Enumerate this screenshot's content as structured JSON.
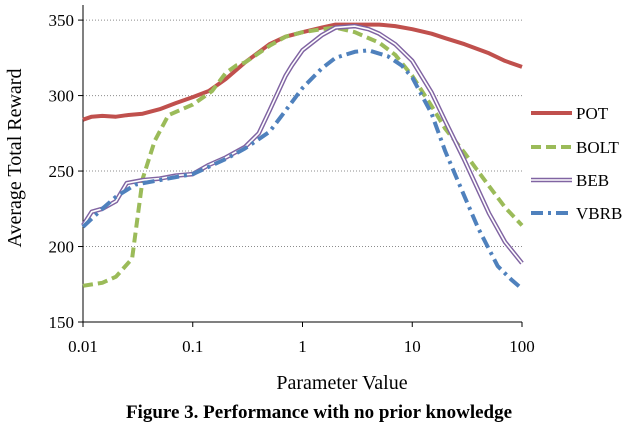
{
  "chart_data": {
    "type": "line",
    "title": "",
    "xlabel": "Parameter Value",
    "ylabel": "Average Total Reward",
    "x_scale": "log",
    "xlim": [
      0.01,
      100
    ],
    "ylim": [
      150,
      360
    ],
    "x_ticks": [
      0.01,
      0.1,
      1,
      10,
      100
    ],
    "x_tick_labels": [
      "0.01",
      "0.1",
      "1",
      "10",
      "100"
    ],
    "y_ticks": [
      150,
      200,
      250,
      300,
      350
    ],
    "y_tick_labels": [
      "150",
      "200",
      "250",
      "300",
      "350"
    ],
    "grid": "horizontal dotted",
    "legend_position": "right",
    "series": [
      {
        "name": "POT",
        "color": "#c0504d",
        "style": "solid",
        "points": [
          [
            0.01,
            284
          ],
          [
            0.012,
            286
          ],
          [
            0.015,
            286.5
          ],
          [
            0.02,
            286
          ],
          [
            0.025,
            287
          ],
          [
            0.035,
            288
          ],
          [
            0.05,
            291
          ],
          [
            0.07,
            295
          ],
          [
            0.1,
            299
          ],
          [
            0.14,
            303
          ],
          [
            0.2,
            311
          ],
          [
            0.3,
            322
          ],
          [
            0.5,
            334
          ],
          [
            0.7,
            339
          ],
          [
            1,
            342
          ],
          [
            1.5,
            345
          ],
          [
            2,
            347
          ],
          [
            3,
            347
          ],
          [
            5,
            347
          ],
          [
            7,
            346
          ],
          [
            10,
            344
          ],
          [
            15,
            341
          ],
          [
            20,
            338
          ],
          [
            30,
            334
          ],
          [
            50,
            328
          ],
          [
            70,
            323
          ],
          [
            100,
            319
          ]
        ]
      },
      {
        "name": "BOLT",
        "color": "#9bbb59",
        "style": "dashed",
        "points": [
          [
            0.01,
            174
          ],
          [
            0.015,
            176
          ],
          [
            0.02,
            180
          ],
          [
            0.028,
            192
          ],
          [
            0.035,
            245
          ],
          [
            0.045,
            270
          ],
          [
            0.06,
            287
          ],
          [
            0.08,
            291
          ],
          [
            0.1,
            294
          ],
          [
            0.15,
            303
          ],
          [
            0.2,
            315
          ],
          [
            0.25,
            320
          ],
          [
            0.3,
            322
          ],
          [
            0.5,
            333
          ],
          [
            0.7,
            339
          ],
          [
            1,
            342
          ],
          [
            1.5,
            344
          ],
          [
            2,
            345
          ],
          [
            3,
            342
          ],
          [
            5,
            335
          ],
          [
            7,
            327
          ],
          [
            10,
            313
          ],
          [
            15,
            293
          ],
          [
            20,
            278
          ],
          [
            30,
            262
          ],
          [
            50,
            240
          ],
          [
            70,
            226
          ],
          [
            100,
            214
          ]
        ]
      },
      {
        "name": "BEB",
        "color": "#8064a2",
        "style": "double",
        "points": [
          [
            0.01,
            214
          ],
          [
            0.012,
            223
          ],
          [
            0.015,
            225
          ],
          [
            0.02,
            230
          ],
          [
            0.025,
            242
          ],
          [
            0.035,
            244
          ],
          [
            0.05,
            245
          ],
          [
            0.07,
            247
          ],
          [
            0.1,
            248
          ],
          [
            0.14,
            254
          ],
          [
            0.2,
            259
          ],
          [
            0.3,
            266
          ],
          [
            0.4,
            275
          ],
          [
            0.5,
            290
          ],
          [
            0.7,
            313
          ],
          [
            0.8,
            320
          ],
          [
            1,
            330
          ],
          [
            1.5,
            340
          ],
          [
            2,
            345
          ],
          [
            3,
            346
          ],
          [
            4,
            344
          ],
          [
            5,
            341
          ],
          [
            7,
            334
          ],
          [
            10,
            323
          ],
          [
            15,
            302
          ],
          [
            20,
            283
          ],
          [
            30,
            257
          ],
          [
            50,
            222
          ],
          [
            70,
            203
          ],
          [
            100,
            189
          ]
        ]
      },
      {
        "name": "VBRB",
        "color": "#4f81bd",
        "style": "dashdot",
        "points": [
          [
            0.01,
            213
          ],
          [
            0.015,
            225
          ],
          [
            0.02,
            233
          ],
          [
            0.03,
            241
          ],
          [
            0.05,
            244
          ],
          [
            0.07,
            246
          ],
          [
            0.1,
            248
          ],
          [
            0.2,
            258
          ],
          [
            0.3,
            265
          ],
          [
            0.5,
            276
          ],
          [
            0.7,
            290
          ],
          [
            1,
            305
          ],
          [
            1.5,
            318
          ],
          [
            2,
            325
          ],
          [
            3,
            329
          ],
          [
            4,
            330
          ],
          [
            6,
            326
          ],
          [
            8,
            320
          ],
          [
            10,
            312
          ],
          [
            15,
            288
          ],
          [
            20,
            263
          ],
          [
            30,
            233
          ],
          [
            40,
            212
          ],
          [
            60,
            187
          ],
          [
            80,
            178
          ],
          [
            100,
            172
          ]
        ]
      }
    ]
  },
  "caption": "Figure 3. Performance with no prior knowledge"
}
